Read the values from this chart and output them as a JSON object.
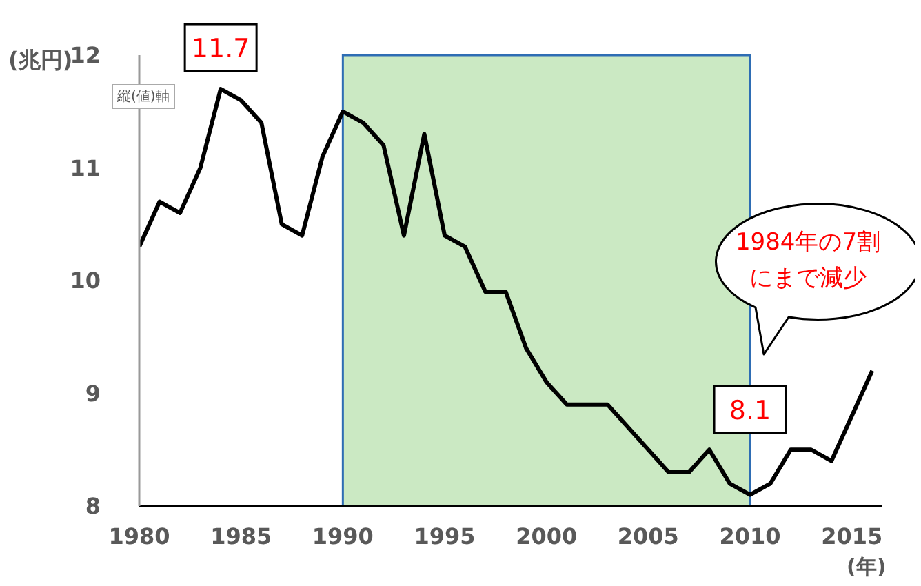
{
  "chart_data": {
    "type": "line",
    "xlabel": "(年)",
    "ylabel": "(兆円)",
    "x": [
      1980,
      1981,
      1982,
      1983,
      1984,
      1985,
      1986,
      1987,
      1988,
      1989,
      1990,
      1991,
      1992,
      1993,
      1994,
      1995,
      1996,
      1997,
      1998,
      1999,
      2000,
      2001,
      2002,
      2003,
      2004,
      2005,
      2006,
      2007,
      2008,
      2009,
      2010,
      2011,
      2012,
      2013,
      2014,
      2015,
      2016
    ],
    "series": [
      {
        "color": "#000000",
        "values": [
          10.3,
          10.7,
          10.6,
          11.0,
          11.7,
          11.6,
          11.4,
          10.5,
          10.4,
          11.1,
          11.5,
          11.4,
          11.2,
          10.4,
          11.3,
          10.4,
          10.3,
          9.9,
          9.9,
          9.4,
          9.1,
          8.9,
          8.9,
          8.9,
          8.7,
          8.5,
          8.3,
          8.3,
          8.5,
          8.2,
          8.1,
          8.2,
          8.5,
          8.5,
          8.4,
          8.8,
          9.2
        ]
      }
    ],
    "xlim": [
      1980,
      2016.5
    ],
    "xticks": [
      1980,
      1985,
      1990,
      1995,
      2000,
      2005,
      2010,
      2015
    ],
    "ylim": [
      8,
      12
    ],
    "yticks": [
      8,
      9,
      10,
      11,
      12
    ],
    "grid": false,
    "marker": "none",
    "line_style": "solid",
    "bands": [
      {
        "axis": "x",
        "from": 1990,
        "to": 2010,
        "color": "#cbe9c3"
      }
    ],
    "annotations": [
      {
        "text": "11.7",
        "x": 1984,
        "y": 11.7
      },
      {
        "text": "8.1",
        "x": 2010,
        "y": 8.1
      },
      "1984年の7割にまで減少",
      "縦(値)軸"
    ]
  }
}
